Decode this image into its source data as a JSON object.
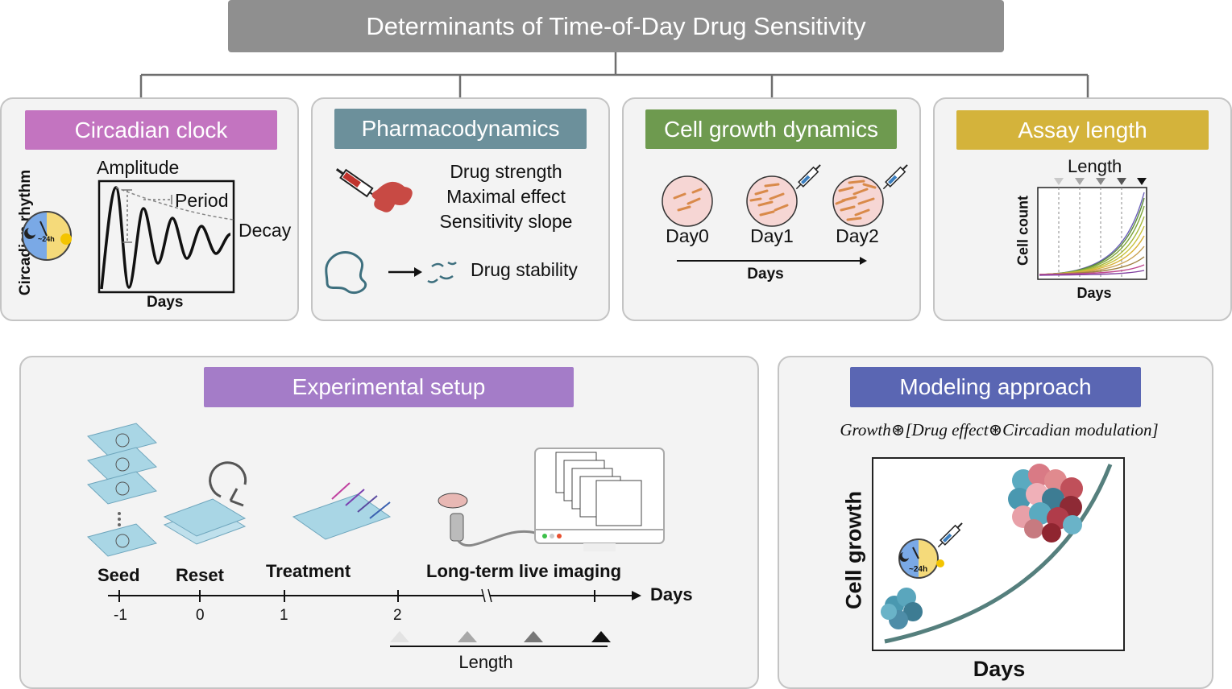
{
  "header": {
    "title": "Determinants of Time-of-Day Drug Sensitivity"
  },
  "colors": {
    "header_gray": "#8f8f8f",
    "circadian_pink": "#c374c0",
    "pharma_teal": "#6c909b",
    "growth_green": "#6e9a4f",
    "assay_gold": "#d4b33b",
    "setup_purple": "#a47cc8",
    "model_blue": "#5a66b3"
  },
  "circadian": {
    "title": "Circadian clock",
    "amplitude": "Amplitude",
    "period": "Period",
    "decay": "Decay",
    "ylabel": "Circadian rhythm",
    "xlabel": "Days",
    "clock_text": "~24h"
  },
  "pharma": {
    "title": "Pharmacodynamics",
    "line1": "Drug strength",
    "line2": "Maximal effect",
    "line3": "Sensitivity slope",
    "stability": "Drug stability"
  },
  "growth": {
    "title": "Cell growth dynamics",
    "day0": "Day0",
    "day1": "Day1",
    "day2": "Day2",
    "xlabel": "Days"
  },
  "assay": {
    "title": "Assay length",
    "length": "Length",
    "ylabel": "Cell count",
    "xlabel": "Days"
  },
  "setup": {
    "title": "Experimental setup",
    "seed": "Seed",
    "reset": "Reset",
    "treatment": "Treatment",
    "imaging": "Long-term live imaging",
    "days": "Days",
    "tick_m1": "-1",
    "tick_0": "0",
    "tick_1": "1",
    "tick_2": "2",
    "length": "Length"
  },
  "model": {
    "title": "Modeling approach",
    "formula": "Growth⊛[Drug effect⊛Circadian modulation]",
    "ylabel": "Cell growth",
    "xlabel": "Days",
    "clock_text": "~24h"
  }
}
